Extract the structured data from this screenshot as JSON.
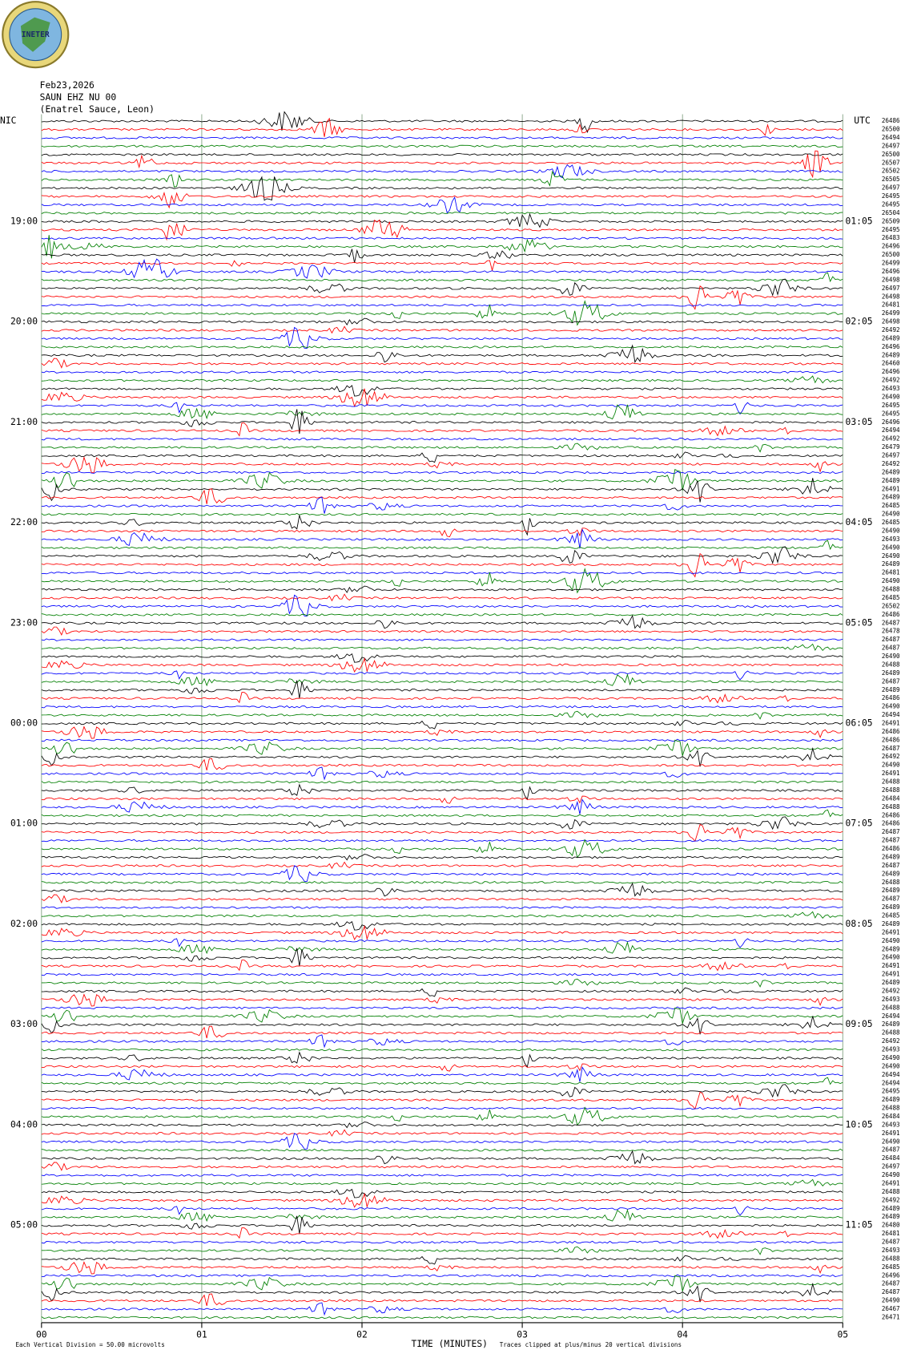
{
  "header": {
    "logo_text": "INETER",
    "date": "Feb23,2026",
    "station": "SAUN EHZ NU 00",
    "location": "(Enatrel Sauce, Leon)"
  },
  "left_title": "NIC",
  "right_title": "UTC",
  "left_labels": [
    "19:00",
    "20:00",
    "21:00",
    "22:00",
    "23:00",
    "00:00",
    "01:00",
    "02:00",
    "03:00",
    "04:00",
    "05:00"
  ],
  "right_labels": [
    "01:05",
    "02:05",
    "03:05",
    "04:05",
    "05:05",
    "06:05",
    "07:05",
    "08:05",
    "09:05",
    "10:05",
    "11:05"
  ],
  "trace_labels": [
    26486,
    26500,
    26494,
    26497,
    26500,
    26507,
    26502,
    26505,
    26497,
    26495,
    26495,
    26504,
    26509,
    26495,
    26483,
    26496,
    26500,
    26499,
    26496,
    26498,
    26497,
    26498,
    26481,
    26499,
    26498,
    26492,
    26489,
    26496,
    26489,
    26460,
    26496,
    26492,
    26493,
    26490,
    26495,
    26495,
    26496,
    26494,
    26492,
    26479,
    26497,
    26492,
    26489,
    26489,
    26491,
    26489,
    26485,
    26490,
    26485,
    26490,
    26493,
    26490,
    26490,
    26489,
    26481,
    26490,
    26488,
    26485,
    26502,
    26486,
    26487,
    26478,
    26487,
    26487,
    26490,
    26488,
    26489,
    26487,
    26489,
    26486,
    26490,
    26494,
    26491,
    26486,
    26486,
    26487,
    26492,
    26490,
    26491,
    26488,
    26488,
    26484,
    26488,
    26486,
    26486,
    26487,
    26487,
    26486,
    26489,
    26487,
    26489,
    26488,
    26489,
    26487,
    26489,
    26485,
    26489,
    26491,
    26490,
    26489,
    26490,
    26491,
    26491,
    26489,
    26492,
    26493,
    26488,
    26494,
    26489,
    26488,
    26492,
    26493,
    26490,
    26490,
    26494,
    26494,
    26495,
    26489,
    26488,
    26484,
    26493,
    26491,
    26490,
    26487,
    26484,
    26497,
    26490,
    26491,
    26488,
    26492,
    26489,
    26489,
    26480,
    26481,
    26487,
    26493,
    26488,
    26485,
    26496,
    26487,
    26487,
    26490,
    26467,
    26471
  ],
  "trace_colors": [
    "#000000",
    "#ff0000",
    "#0000ff",
    "#007f00"
  ],
  "x_axis": {
    "ticks": [
      "00",
      "01",
      "02",
      "03",
      "04",
      "05"
    ],
    "label": "TIME (MINUTES)"
  },
  "footer": {
    "scale_note": "Each Vertical Division =   50.00 microvolts",
    "clip_note": "Traces clipped at plus/minus 20 vertical divisions"
  }
}
